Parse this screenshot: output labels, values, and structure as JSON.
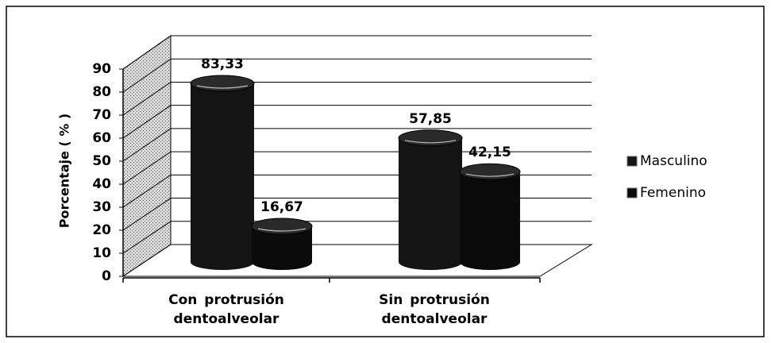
{
  "chart_data": {
    "type": "bar3d",
    "y_label": "Porcentaje ( % )",
    "categories": [
      "Con protrusión dentoalveolar",
      "Sin protrusión dentoalveolar"
    ],
    "series": [
      {
        "name": "Masculino",
        "color": "#141414",
        "values": [
          83.33,
          57.85
        ],
        "value_labels": [
          "83,33",
          "57,85"
        ]
      },
      {
        "name": "Femenino",
        "color": "#0a0a0a",
        "values": [
          16.67,
          42.15
        ],
        "value_labels": [
          "16,67",
          "42,15"
        ]
      }
    ],
    "ylim": [
      0,
      90
    ],
    "yticks": [
      0,
      10,
      20,
      30,
      40,
      50,
      60,
      70,
      80,
      90
    ],
    "grid": true,
    "legend": "right"
  }
}
